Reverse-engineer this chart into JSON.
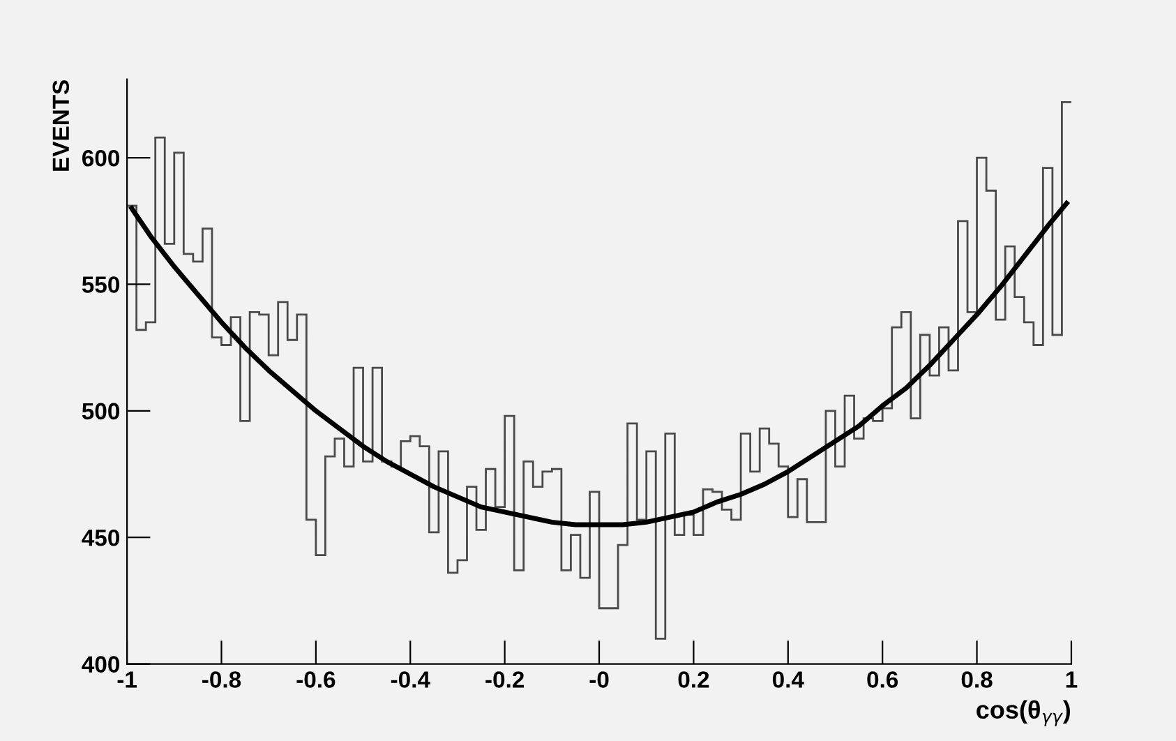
{
  "chart_data": {
    "type": "histogram",
    "xlabel": "cos(θ$_{γγ}$)",
    "ylabel": "EVENTS",
    "xlim": [
      -1,
      1
    ],
    "ylim": [
      400,
      631
    ],
    "xticks": [
      -1,
      -0.8,
      -0.6,
      -0.4,
      -0.2,
      {
        "value": 0,
        "label": "-0"
      },
      0.2,
      0.4,
      0.6,
      0.8,
      1
    ],
    "yticks": [
      400,
      450,
      500,
      550,
      600
    ],
    "series": [
      {
        "type": "histogram",
        "color": "#4a4a4a",
        "bins": [
          -1,
          -0.98,
          -0.96,
          -0.94,
          -0.92,
          -0.9,
          -0.88,
          -0.86,
          -0.84,
          -0.82,
          -0.8,
          -0.78,
          -0.76,
          -0.74,
          -0.72,
          -0.7,
          -0.68,
          -0.66,
          -0.64,
          -0.62,
          -0.6,
          -0.58,
          -0.56,
          -0.54,
          -0.52,
          -0.5,
          -0.48,
          -0.46,
          -0.44,
          -0.42,
          -0.4,
          -0.38,
          -0.36,
          -0.34,
          -0.32,
          -0.3,
          -0.28,
          -0.26,
          -0.24,
          -0.22,
          -0.2,
          -0.18,
          -0.16,
          -0.14,
          -0.12,
          -0.1,
          -0.08,
          -0.06,
          -0.04,
          -0.02,
          0,
          0.02,
          0.04,
          0.06,
          0.08,
          0.1,
          0.12,
          0.14,
          0.16,
          0.18,
          0.2,
          0.22,
          0.24,
          0.26,
          0.28,
          0.3,
          0.32,
          0.34,
          0.36,
          0.38,
          0.4,
          0.42,
          0.44,
          0.46,
          0.48,
          0.5,
          0.52,
          0.54,
          0.56,
          0.58,
          0.6,
          0.62,
          0.64,
          0.66,
          0.68,
          0.7,
          0.72,
          0.74,
          0.76,
          0.78,
          0.8,
          0.82,
          0.84,
          0.86,
          0.88,
          0.9,
          0.92,
          0.94,
          0.96,
          0.98,
          1
        ],
        "values": [
          581,
          532,
          535,
          608,
          566,
          602,
          562,
          559,
          572,
          529,
          526,
          537,
          496,
          539,
          538,
          522,
          543,
          528,
          538,
          457,
          443,
          482,
          489,
          478,
          517,
          480,
          517,
          480,
          478,
          488,
          490,
          486,
          452,
          484,
          436,
          441,
          470,
          453,
          477,
          462,
          498,
          437,
          480,
          470,
          476,
          477,
          437,
          451,
          434,
          468,
          422,
          422,
          447,
          495,
          457,
          484,
          410,
          491,
          451,
          459,
          451,
          469,
          468,
          461,
          457,
          491,
          476,
          493,
          487,
          478,
          458,
          473,
          456,
          456,
          500,
          478,
          506,
          489,
          497,
          496,
          501,
          533,
          539,
          497,
          530,
          514,
          533,
          516,
          575,
          539,
          600,
          587,
          536,
          565,
          545,
          535,
          526,
          596,
          530,
          622
        ]
      },
      {
        "type": "line",
        "color": "#000000",
        "x": [
          -0.99,
          -0.95,
          -0.9,
          -0.85,
          -0.8,
          -0.75,
          -0.7,
          -0.65,
          -0.6,
          -0.55,
          -0.5,
          -0.45,
          -0.4,
          -0.35,
          -0.3,
          -0.25,
          -0.2,
          -0.15,
          -0.1,
          -0.05,
          0,
          0.05,
          0.1,
          0.15,
          0.2,
          0.25,
          0.3,
          0.35,
          0.4,
          0.45,
          0.5,
          0.55,
          0.6,
          0.65,
          0.7,
          0.75,
          0.8,
          0.85,
          0.9,
          0.95,
          0.99
        ],
        "values": [
          580,
          569,
          557,
          546,
          535,
          525,
          516,
          508,
          500,
          493,
          486,
          480,
          475,
          470,
          466,
          462,
          460,
          458,
          456,
          455,
          455,
          455,
          456,
          458,
          460,
          464,
          467,
          471,
          476,
          482,
          488,
          494,
          502,
          509,
          518,
          528,
          538,
          549,
          561,
          573,
          582
        ]
      }
    ]
  }
}
